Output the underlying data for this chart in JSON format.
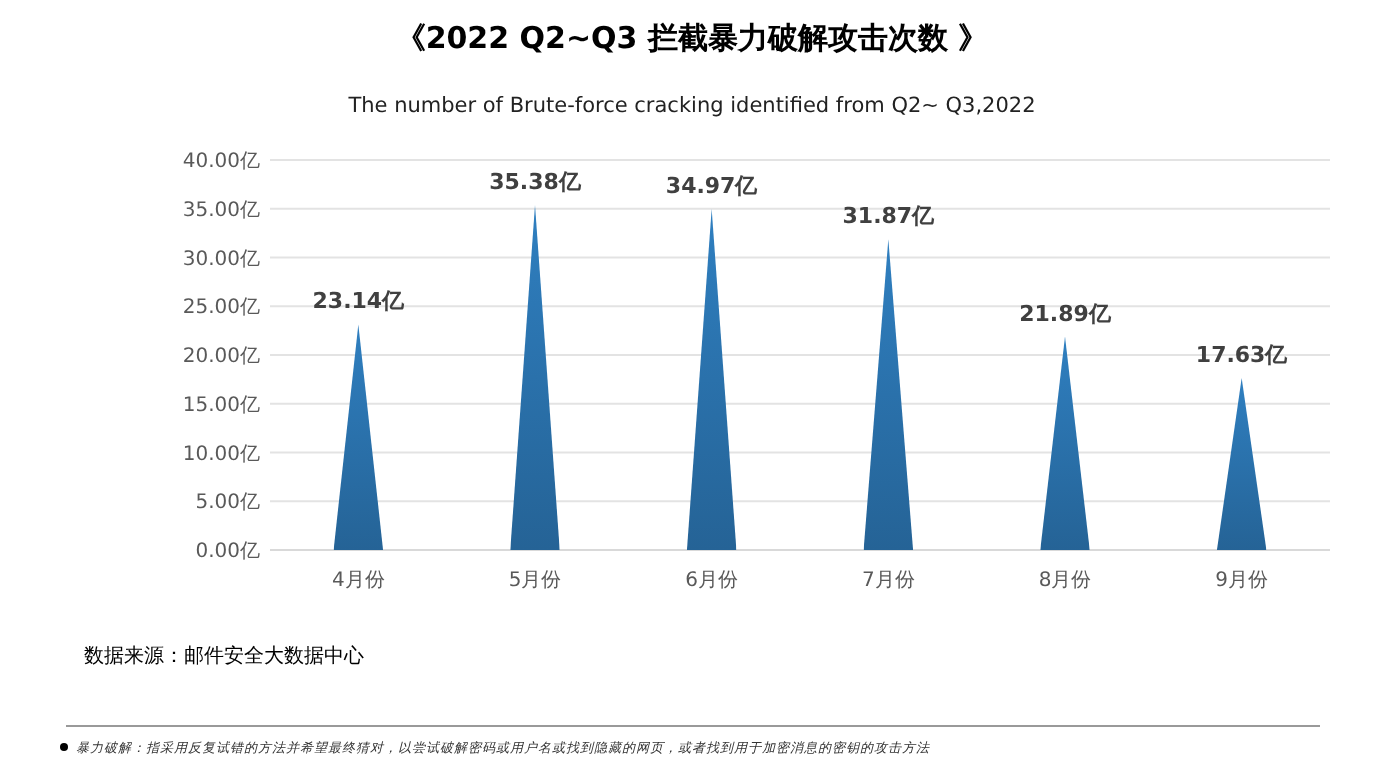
{
  "chart_data": {
    "type": "bar",
    "title": "《2022 Q2~Q3 拦截暴力破解攻击次数 》",
    "subtitle": "The number of Brute-force cracking identified from Q2~ Q3,2022",
    "categories": [
      "4月份",
      "5月份",
      "6月份",
      "7月份",
      "8月份",
      "9月份"
    ],
    "values": [
      23.14,
      35.38,
      34.97,
      31.87,
      21.89,
      17.63
    ],
    "value_labels": [
      "23.14亿",
      "35.38亿",
      "34.97亿",
      "31.87亿",
      "21.89亿",
      "17.63亿"
    ],
    "color": "#2f7fc0",
    "ylim": [
      0,
      40
    ],
    "yticks": [
      {
        "value": 0,
        "label": "0.00亿"
      },
      {
        "value": 5,
        "label": "5.00亿"
      },
      {
        "value": 10,
        "label": "10.00亿"
      },
      {
        "value": 15,
        "label": "15.00亿"
      },
      {
        "value": 20,
        "label": "20.00亿"
      },
      {
        "value": 25,
        "label": "25.00亿"
      },
      {
        "value": 30,
        "label": "30.00亿"
      },
      {
        "value": 35,
        "label": "35.00亿"
      },
      {
        "value": 40,
        "label": "40.00亿"
      }
    ],
    "grid": "y",
    "annotations": [
      "数据来源：邮件安全大数据中心",
      "暴力破解：指采用反复试错的方法并希望最终猜对，以尝试破解密码或用户名或找到隐藏的网页，或者找到用于加密消息的密钥的攻击方法"
    ]
  }
}
